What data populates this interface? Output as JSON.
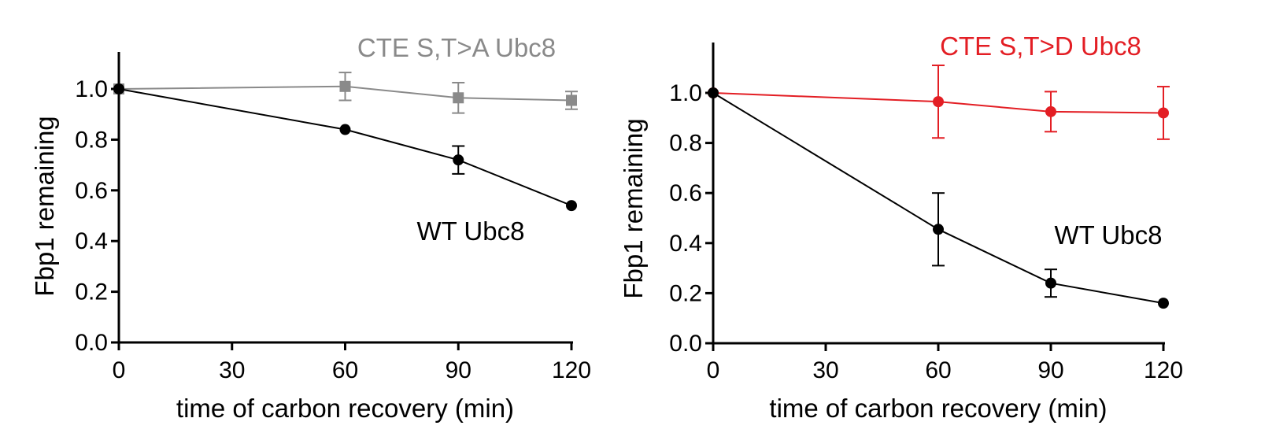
{
  "chart_data": [
    {
      "type": "line",
      "title": "",
      "xlabel": "time of carbon recovery (min)",
      "ylabel": "Fbp1 remaining",
      "xlim": [
        0,
        120
      ],
      "ylim": [
        0,
        1.0
      ],
      "x_ticks": [
        0,
        30,
        60,
        90,
        120
      ],
      "x_tick_labels": [
        "0",
        "30",
        "60",
        "90",
        "120"
      ],
      "y_ticks": [
        0,
        0.2,
        0.4,
        0.6,
        0.8,
        1.0
      ],
      "y_tick_labels": [
        "0.0",
        "0.2",
        "0.4",
        "0.6",
        "0.8",
        "1.0"
      ],
      "grid": false,
      "series": [
        {
          "name": "CTE S,T>A Ubc8",
          "color": "#8a8a8a",
          "marker": "square",
          "x": [
            0,
            60,
            90,
            120
          ],
          "values": [
            1.0,
            1.01,
            0.965,
            0.955
          ],
          "error": [
            0,
            0.055,
            0.06,
            0.035
          ]
        },
        {
          "name": "WT Ubc8",
          "color": "#000000",
          "marker": "circle",
          "x": [
            0,
            60,
            90,
            120
          ],
          "values": [
            1.0,
            0.84,
            0.72,
            0.54
          ],
          "error": [
            0,
            0,
            0.055,
            0
          ]
        }
      ]
    },
    {
      "type": "line",
      "title": "",
      "xlabel": "time of carbon recovery (min)",
      "ylabel": "Fbp1 remaining",
      "xlim": [
        0,
        120
      ],
      "ylim": [
        0,
        1.0
      ],
      "x_ticks": [
        0,
        30,
        60,
        90,
        120
      ],
      "x_tick_labels": [
        "0",
        "30",
        "60",
        "90",
        "120"
      ],
      "y_ticks": [
        0,
        0.2,
        0.4,
        0.6,
        0.8,
        1.0
      ],
      "y_tick_labels": [
        "0.0",
        "0.2",
        "0.4",
        "0.6",
        "0.8",
        "1.0"
      ],
      "grid": false,
      "series": [
        {
          "name": "CTE S,T>D Ubc8",
          "color": "#e31e24",
          "marker": "circle",
          "x": [
            0,
            60,
            90,
            120
          ],
          "values": [
            1.0,
            0.965,
            0.925,
            0.92
          ],
          "error": [
            0,
            0.145,
            0.08,
            0.105
          ]
        },
        {
          "name": "WT Ubc8",
          "color": "#000000",
          "marker": "circle",
          "x": [
            0,
            60,
            90,
            120
          ],
          "values": [
            1.0,
            0.455,
            0.24,
            0.16
          ],
          "error": [
            0,
            0.145,
            0.055,
            0
          ]
        }
      ]
    }
  ]
}
